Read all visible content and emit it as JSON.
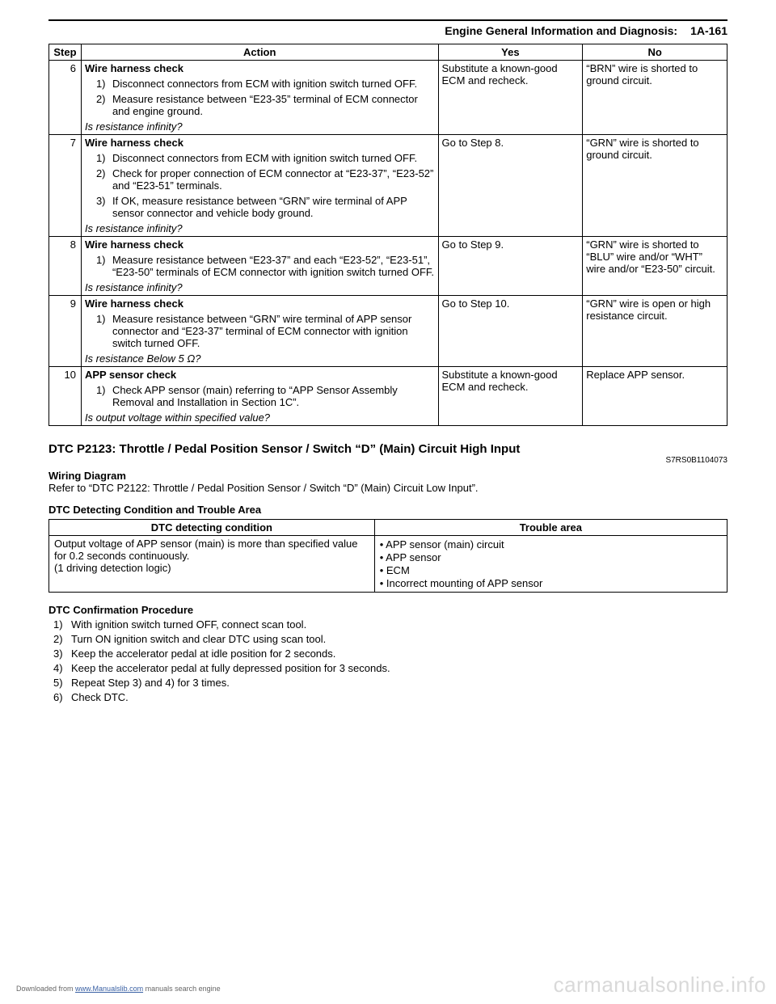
{
  "header": {
    "title": "Engine General Information and Diagnosis:",
    "page": "1A-161"
  },
  "diagTable": {
    "headers": {
      "step": "Step",
      "action": "Action",
      "yes": "Yes",
      "no": "No"
    },
    "rows": [
      {
        "step": "6",
        "title": "Wire harness check",
        "items": [
          "Disconnect connectors from ECM with ignition switch turned OFF.",
          "Measure resistance between “E23-35” terminal of ECM connector and engine ground."
        ],
        "question": "Is resistance infinity?",
        "yes": "Substitute a known-good ECM and recheck.",
        "no": "“BRN” wire is shorted to ground circuit."
      },
      {
        "step": "7",
        "title": "Wire harness check",
        "items": [
          "Disconnect connectors from ECM with ignition switch turned OFF.",
          "Check for proper connection of ECM connector at “E23-37”, “E23-52” and “E23-51” terminals.",
          "If OK, measure resistance between “GRN” wire terminal of APP sensor connector and vehicle body ground."
        ],
        "question": "Is resistance infinity?",
        "yes": "Go to Step 8.",
        "no": "“GRN” wire is shorted to ground circuit."
      },
      {
        "step": "8",
        "title": "Wire harness check",
        "items": [
          "Measure resistance between “E23-37” and each “E23-52”, “E23-51”, “E23-50” terminals of ECM connector with ignition switch turned OFF."
        ],
        "question": "Is resistance infinity?",
        "yes": "Go to Step 9.",
        "no": "“GRN” wire is shorted to “BLU” wire and/or “WHT” wire and/or “E23-50” circuit."
      },
      {
        "step": "9",
        "title": "Wire harness check",
        "items": [
          "Measure resistance between “GRN” wire terminal of APP sensor connector and “E23-37” terminal of ECM connector with ignition switch turned OFF."
        ],
        "question": "Is resistance Below 5 Ω?",
        "yes": "Go to Step 10.",
        "no": "“GRN” wire is open or high resistance circuit."
      },
      {
        "step": "10",
        "title": "APP sensor check",
        "items": [
          "Check APP sensor (main) referring to “APP Sensor Assembly Removal and Installation in Section 1C”."
        ],
        "question": "Is output voltage within specified value?",
        "yes": "Substitute a known-good ECM and recheck.",
        "no": "Replace APP sensor."
      }
    ]
  },
  "section": {
    "title": "DTC P2123: Throttle / Pedal Position Sensor / Switch “D” (Main) Circuit High Input",
    "docid": "S7RS0B1104073"
  },
  "wiring": {
    "title": "Wiring Diagram",
    "text": "Refer to “DTC P2122: Throttle / Pedal Position Sensor / Switch “D” (Main) Circuit Low Input”."
  },
  "dtcCond": {
    "title": "DTC Detecting Condition and Trouble Area",
    "headers": {
      "cond": "DTC detecting condition",
      "trouble": "Trouble area"
    },
    "condLines": [
      "Output voltage of APP sensor (main) is more than specified value for 0.2 seconds continuously.",
      "(1 driving detection logic)"
    ],
    "troubleItems": [
      "APP sensor (main) circuit",
      "APP sensor",
      "ECM",
      "Incorrect mounting of APP sensor"
    ]
  },
  "confirm": {
    "title": "DTC Confirmation Procedure",
    "steps": [
      "With ignition switch turned OFF, connect scan tool.",
      "Turn ON ignition switch and clear DTC using scan tool.",
      "Keep the accelerator pedal at idle position for 2 seconds.",
      "Keep the accelerator pedal at fully depressed position for 3 seconds.",
      "Repeat Step 3) and 4) for 3 times.",
      "Check DTC."
    ]
  },
  "footer": {
    "prefix": "Downloaded from ",
    "link": "www.Manualslib.com",
    "suffix": " manuals search engine"
  },
  "watermark": "carmanualsonline.info"
}
